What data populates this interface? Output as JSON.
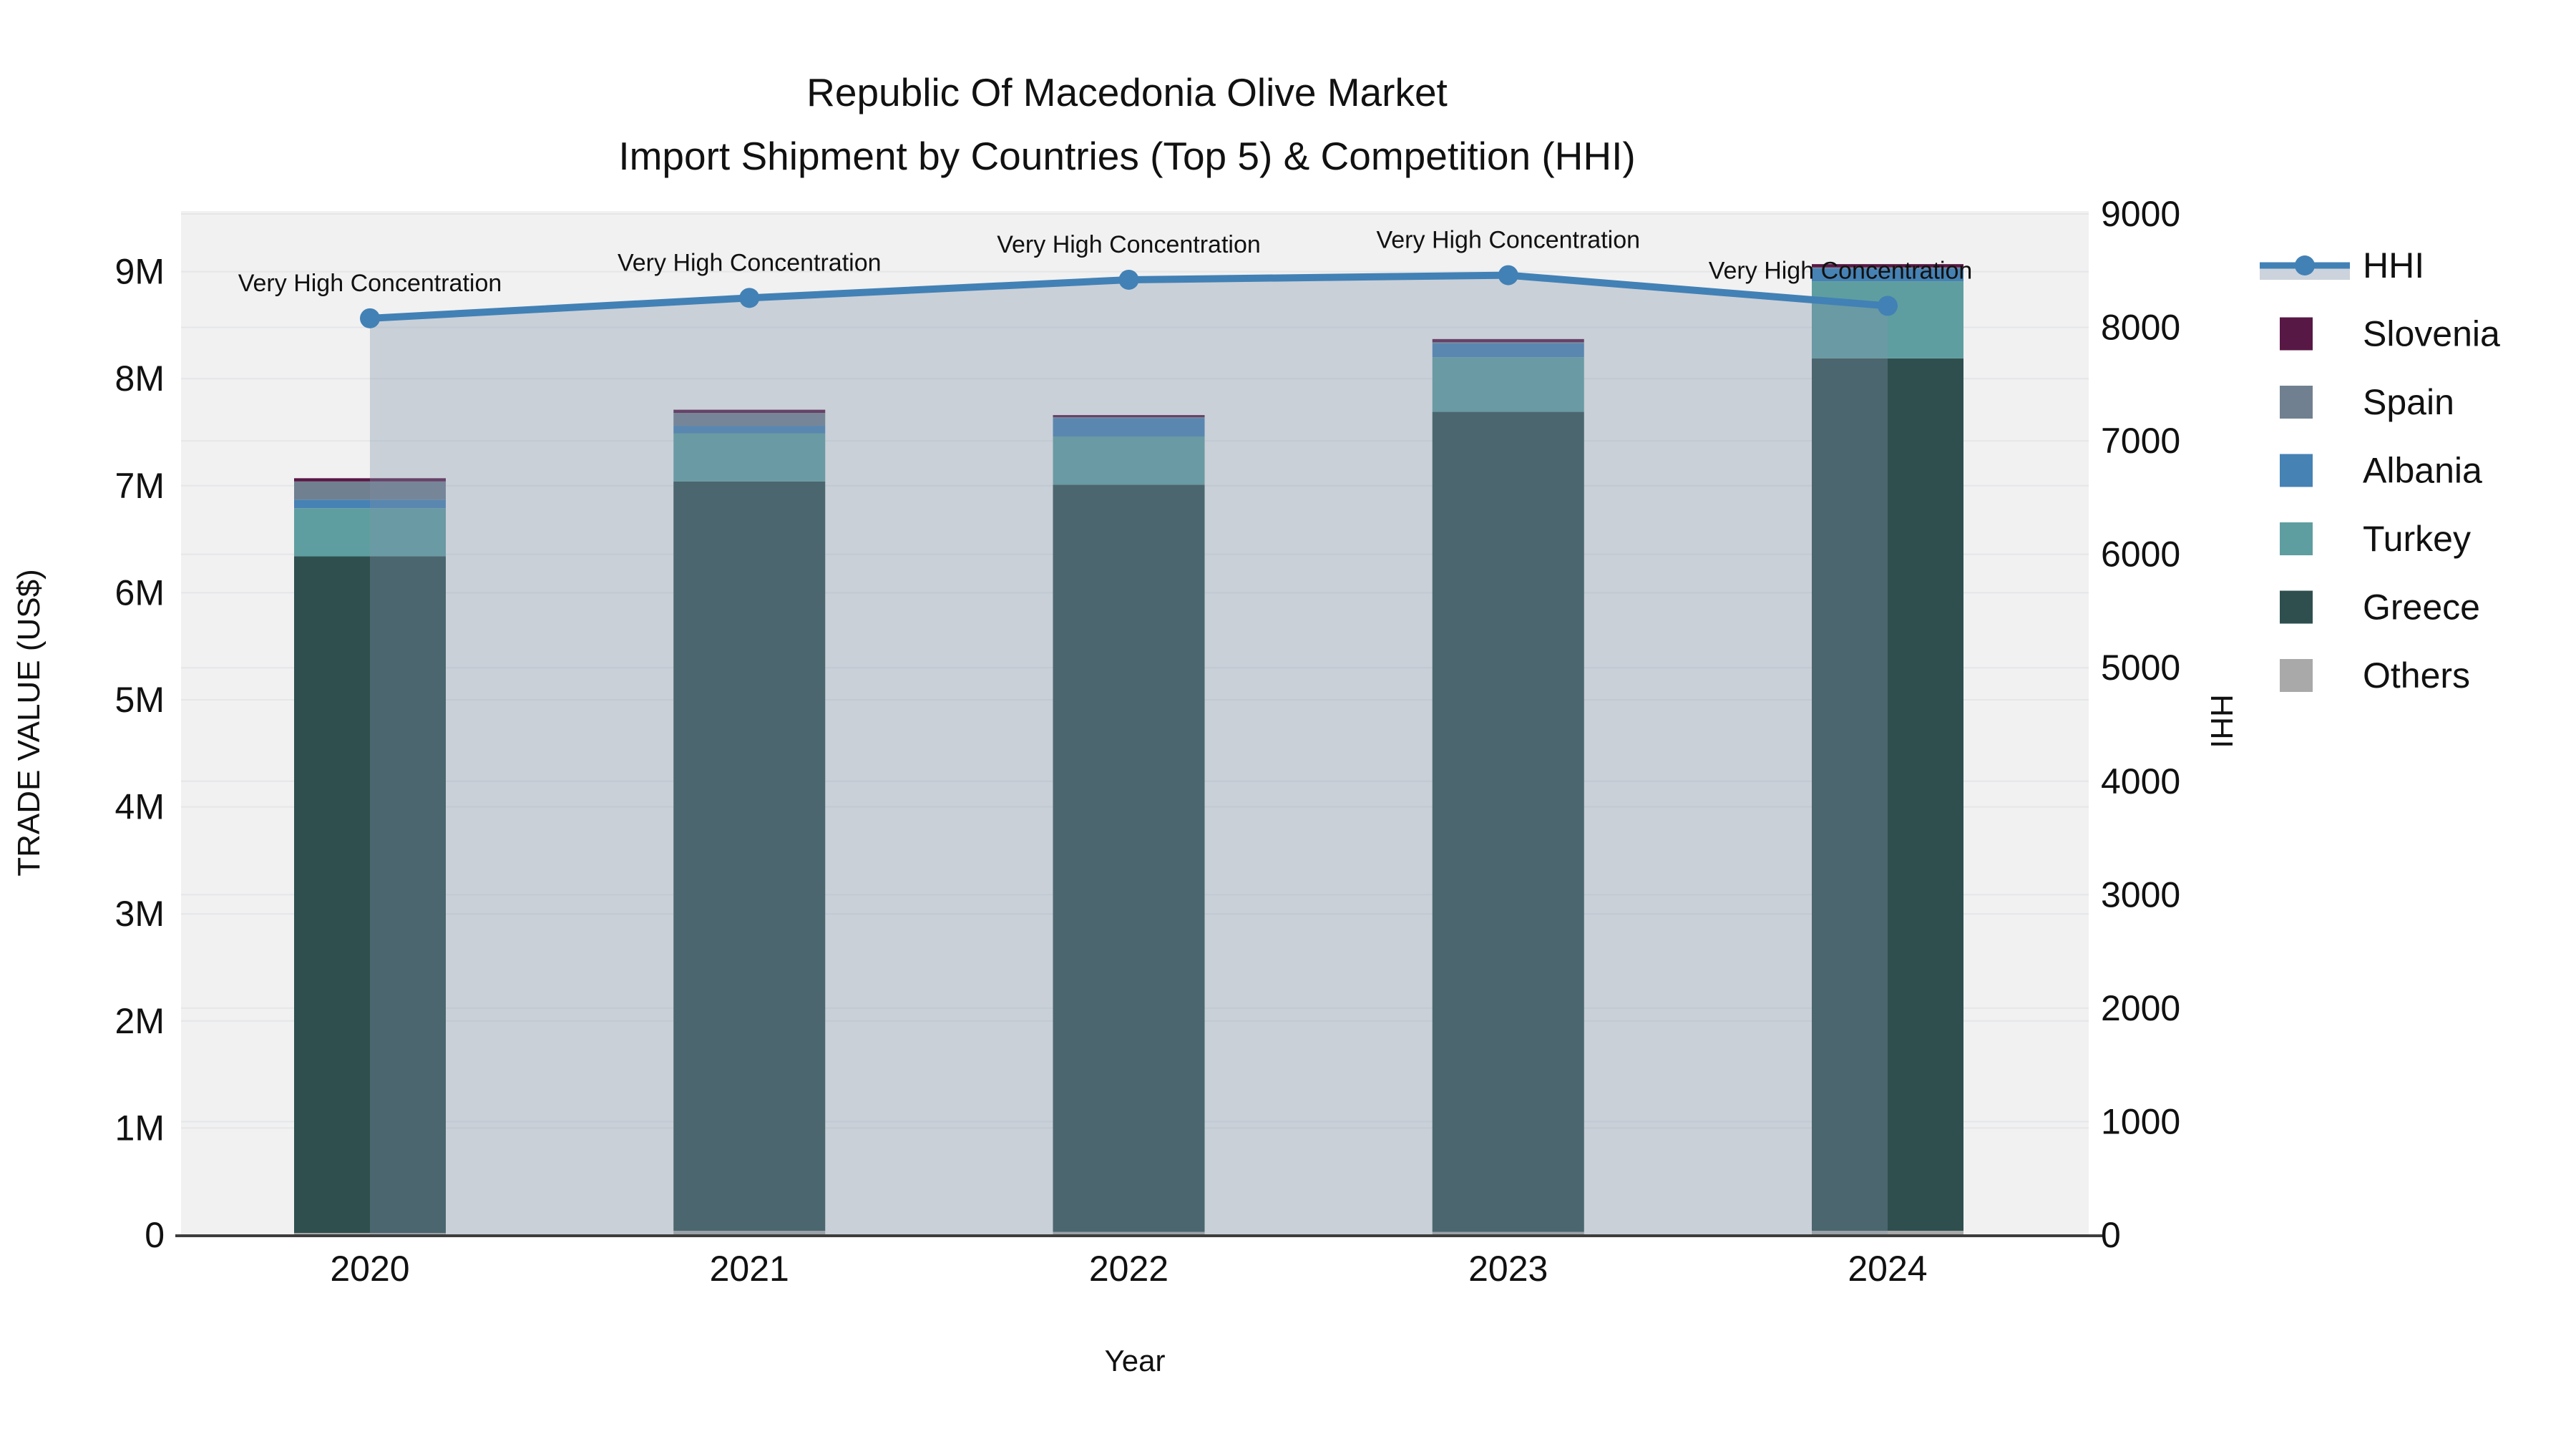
{
  "title": {
    "line1": "Republic Of Macedonia Olive Market",
    "line2": "Import Shipment by Countries (Top 5) & Competition (HHI)"
  },
  "chart_data": {
    "type": "bar",
    "stacked": true,
    "categories": [
      "2020",
      "2021",
      "2022",
      "2023",
      "2024"
    ],
    "xlabel": "Year",
    "ylabel_left": "TRADE VALUE (US$)",
    "ylabel_right": "HHI",
    "ylim_left_usd": [
      0,
      9570000
    ],
    "ylim_right_hhi": [
      0,
      9000
    ],
    "left_ticks": [
      "0",
      "1M",
      "2M",
      "3M",
      "4M",
      "5M",
      "6M",
      "7M",
      "8M",
      "9M"
    ],
    "right_ticks": [
      "0",
      "1000",
      "2000",
      "3000",
      "4000",
      "5000",
      "6000",
      "7000",
      "8000",
      "9000"
    ],
    "grid": true,
    "plot_bg": "#f1f1f1",
    "grid_color": "#e4e6e9",
    "axisline_color": "#3d3d3d",
    "series_stack_bottom_to_top": [
      {
        "name": "Others",
        "color": "#A9A9A9",
        "values_usd": [
          20000,
          40000,
          30000,
          30000,
          40000
        ]
      },
      {
        "name": "Greece",
        "color": "#2F4F4F",
        "values_usd": [
          6320000,
          7000000,
          6980000,
          7660000,
          8150000
        ]
      },
      {
        "name": "Turkey",
        "color": "#5F9EA0",
        "values_usd": [
          450000,
          450000,
          450000,
          510000,
          720000
        ]
      },
      {
        "name": "Albania",
        "color": "#4682B4",
        "values_usd": [
          80000,
          70000,
          170000,
          130000,
          120000
        ]
      },
      {
        "name": "Spain",
        "color": "#708090",
        "values_usd": [
          170000,
          120000,
          10000,
          10000,
          10000
        ]
      },
      {
        "name": "Slovenia",
        "color": "#581845",
        "values_usd": [
          30000,
          30000,
          20000,
          30000,
          30000
        ]
      }
    ],
    "bar_totals_usd": [
      7070000,
      7710000,
      7660000,
      8370000,
      9070000
    ],
    "line_series": {
      "name": "HHI",
      "axis": "right",
      "color": "#4281b5",
      "fill_color": "rgba(130,145,170,0.35)",
      "values": [
        8080,
        8260,
        8420,
        8460,
        8190
      ]
    },
    "annotations": [
      {
        "text": "Very High Concentration",
        "x": "2020"
      },
      {
        "text": "Very High Concentration",
        "x": "2021"
      },
      {
        "text": "Very High Concentration",
        "x": "2022"
      },
      {
        "text": "Very High Concentration",
        "x": "2023"
      },
      {
        "text": "Very High Concentration",
        "x": "2024"
      }
    ],
    "legend_order": [
      "HHI",
      "Slovenia",
      "Spain",
      "Albania",
      "Turkey",
      "Greece",
      "Others"
    ]
  },
  "legend": {
    "items": [
      {
        "label": "HHI",
        "type": "line",
        "color": "#4281b5",
        "band_color": "#ccd3dc"
      },
      {
        "label": "Slovenia",
        "type": "swatch",
        "color": "#581845"
      },
      {
        "label": "Spain",
        "type": "swatch",
        "color": "#708090"
      },
      {
        "label": "Albania",
        "type": "swatch",
        "color": "#4682B4"
      },
      {
        "label": "Turkey",
        "type": "swatch",
        "color": "#5F9EA0"
      },
      {
        "label": "Greece",
        "type": "swatch",
        "color": "#2F4F4F"
      },
      {
        "label": "Others",
        "type": "swatch",
        "color": "#A9A9A9"
      }
    ]
  }
}
